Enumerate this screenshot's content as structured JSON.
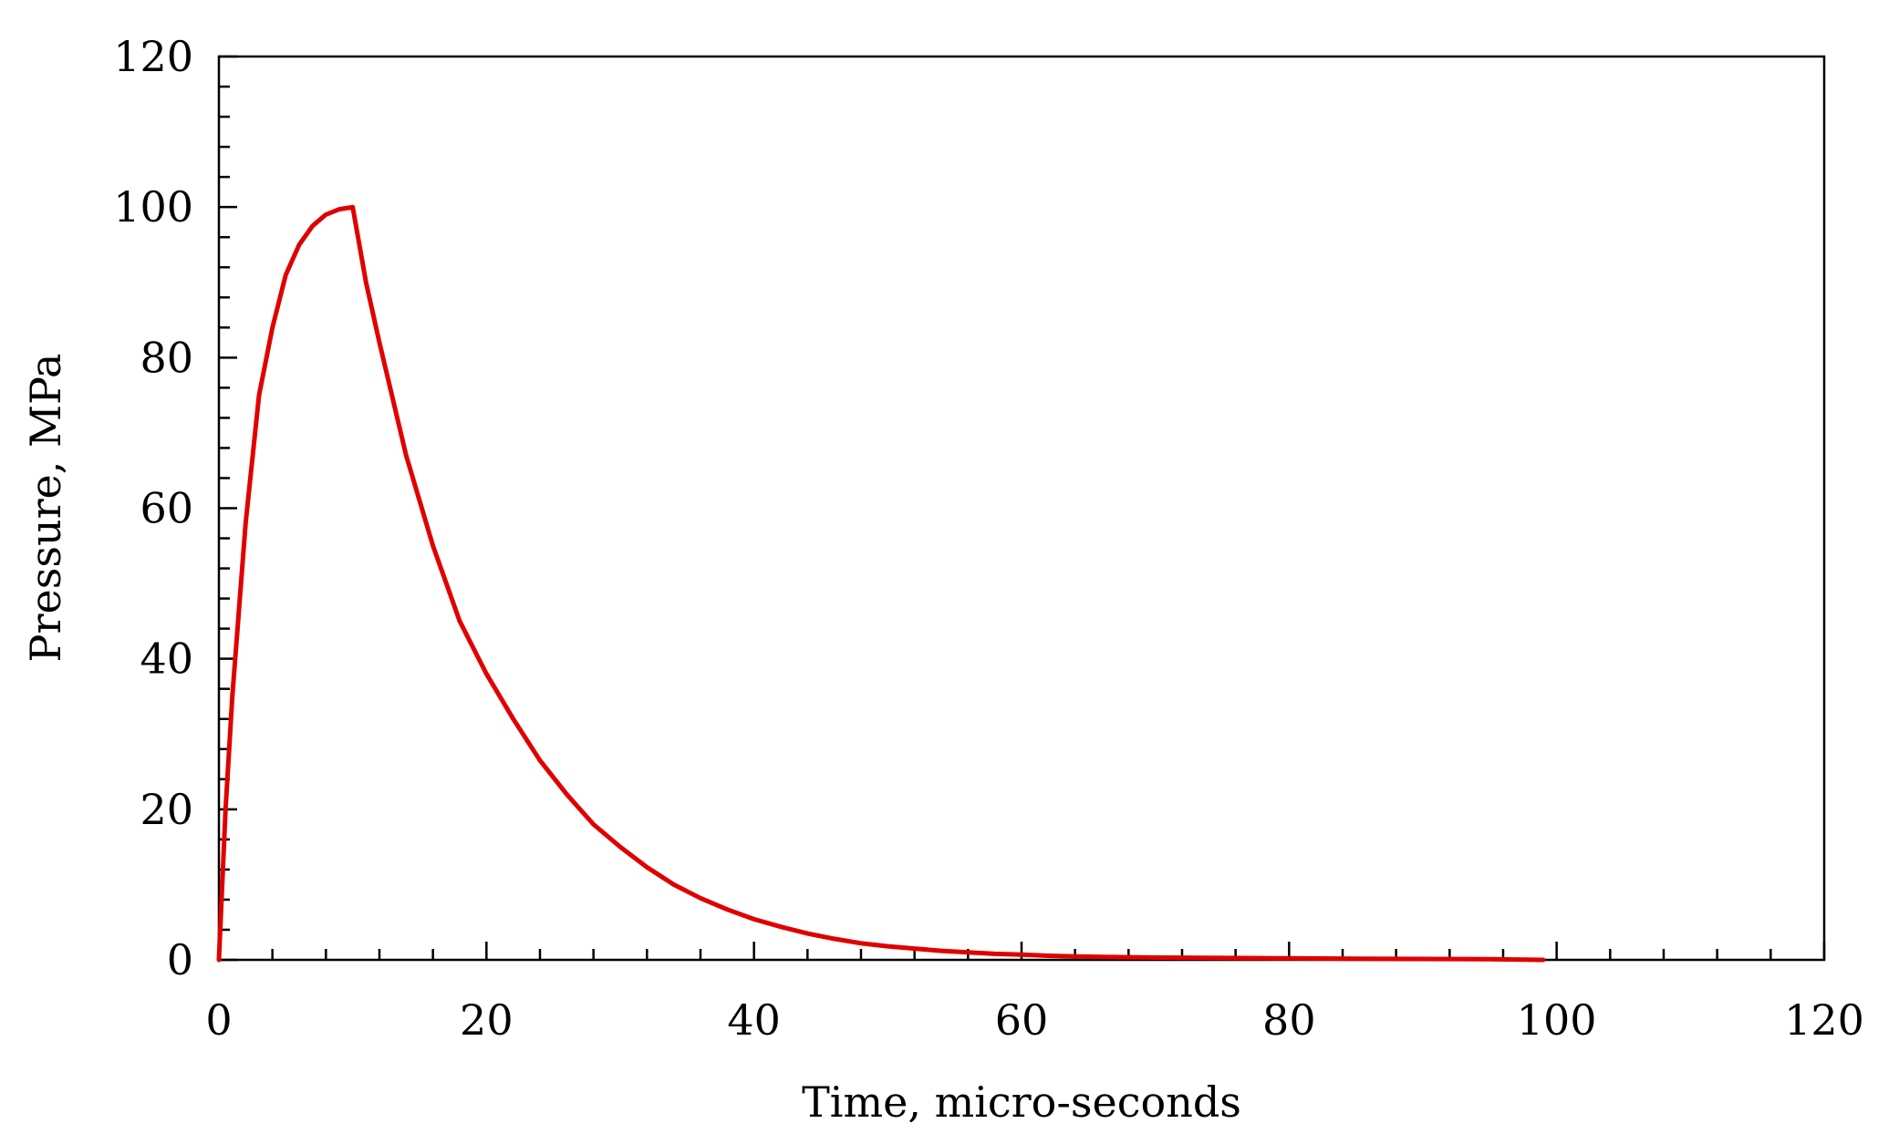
{
  "chart_data": {
    "type": "line",
    "title": "",
    "xlabel": "Time, micro-seconds",
    "ylabel": "Pressure, MPa",
    "xlim": [
      0,
      120
    ],
    "ylim": [
      0,
      120
    ],
    "x_major_ticks": [
      0,
      20,
      40,
      60,
      80,
      100,
      120
    ],
    "y_major_ticks": [
      0,
      20,
      40,
      60,
      80,
      100,
      120
    ],
    "x_tick_labels": [
      "0",
      "20",
      "40",
      "60",
      "80",
      "100",
      "120"
    ],
    "y_tick_labels": [
      "0",
      "20",
      "40",
      "60",
      "80",
      "100",
      "120"
    ],
    "x_minor_step": 4,
    "y_minor_step": 4,
    "grid": false,
    "legend": "none",
    "series": [
      {
        "color": "#e00000",
        "x": [
          0,
          0.5,
          1,
          2,
          3,
          4,
          5,
          6,
          7,
          8,
          9,
          10,
          11,
          12,
          14,
          16,
          18,
          20,
          22,
          24,
          26,
          28,
          30,
          32,
          34,
          36,
          38,
          40,
          42,
          44,
          46,
          48,
          50,
          52,
          54,
          56,
          58,
          60,
          62,
          64,
          66,
          68,
          70,
          75,
          80,
          85,
          90,
          95,
          99
        ],
        "y": [
          0,
          20,
          35,
          58,
          75,
          84,
          91,
          95,
          97.5,
          99,
          99.7,
          100,
          90,
          82,
          67,
          55,
          45,
          38,
          32,
          26.5,
          22,
          18,
          15,
          12.3,
          10,
          8.2,
          6.7,
          5.4,
          4.4,
          3.5,
          2.8,
          2.2,
          1.8,
          1.5,
          1.2,
          1.0,
          0.8,
          0.7,
          0.55,
          0.45,
          0.4,
          0.35,
          0.3,
          0.25,
          0.2,
          0.15,
          0.12,
          0.1,
          0
        ]
      }
    ]
  }
}
